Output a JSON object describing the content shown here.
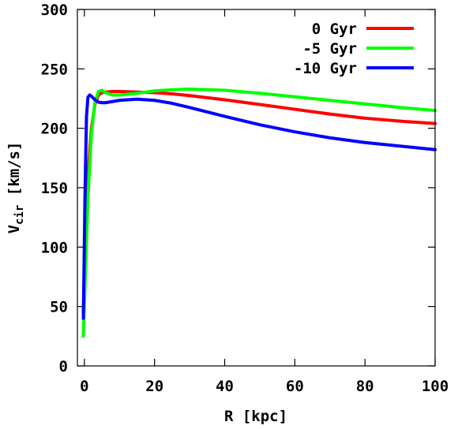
{
  "chart_data": {
    "type": "line",
    "title": "",
    "xlabel": "R [kpc]",
    "ylabel_main": "V",
    "ylabel_sub": "cir",
    "ylabel_unit": " [km/s]",
    "xlim": [
      -2,
      100
    ],
    "ylim": [
      0,
      300
    ],
    "xticks": [
      0,
      20,
      40,
      60,
      80,
      100
    ],
    "yticks": [
      0,
      50,
      100,
      150,
      200,
      250,
      300
    ],
    "legend_position": "top-right",
    "grid": false,
    "series": [
      {
        "name": "0 Gyr",
        "color": "#ff0000",
        "x": [
          -0.3,
          0.3,
          1,
          2,
          3,
          4,
          5,
          6,
          8,
          10,
          15,
          20,
          25,
          30,
          40,
          50,
          60,
          70,
          80,
          90,
          100
        ],
        "y": [
          45,
          110,
          160,
          200,
          220,
          228,
          230,
          230.5,
          231,
          231,
          230.5,
          230,
          229,
          227.5,
          224,
          220,
          216,
          212,
          208.5,
          206,
          204
        ]
      },
      {
        "name": "-5 Gyr",
        "color": "#00ff00",
        "x": [
          -0.3,
          0.3,
          1,
          2,
          3,
          4,
          5,
          6,
          8,
          10,
          15,
          20,
          25,
          30,
          40,
          50,
          60,
          70,
          80,
          90,
          100
        ],
        "y": [
          25,
          80,
          140,
          195,
          222,
          231,
          232,
          230,
          228,
          228,
          229.5,
          231.5,
          232.5,
          233,
          232,
          229.5,
          226.5,
          223.5,
          220.5,
          217.5,
          215
        ]
      },
      {
        "name": "-10 Gyr",
        "color": "#0000ff",
        "x": [
          -0.3,
          0.2,
          0.6,
          1,
          1.5,
          2,
          3,
          4,
          5,
          6,
          8,
          10,
          15,
          20,
          25,
          30,
          40,
          50,
          60,
          70,
          80,
          90,
          100
        ],
        "y": [
          40,
          150,
          210,
          226,
          228,
          227,
          224,
          222,
          221.5,
          221.5,
          222.5,
          223.5,
          224.5,
          223.5,
          221,
          217.5,
          210,
          203,
          197,
          192,
          188,
          185,
          182
        ]
      }
    ]
  }
}
